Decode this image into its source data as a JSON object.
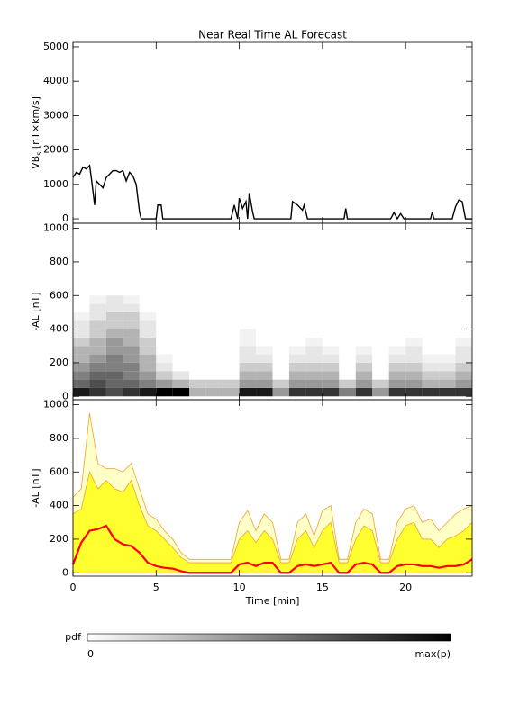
{
  "chart_data": [
    {
      "type": "line",
      "title": "Near Real Time AL Forecast",
      "ylabel": [
        "VB",
        "s",
        " [nT×km/s]"
      ],
      "x": [
        0,
        0.2,
        0.4,
        0.6,
        0.8,
        1.0,
        1.1,
        1.2,
        1.3,
        1.4,
        1.6,
        1.8,
        2.0,
        2.2,
        2.4,
        2.6,
        2.8,
        3.0,
        3.2,
        3.4,
        3.6,
        3.8,
        3.9,
        4.0,
        4.1,
        5.0,
        5.1,
        5.3,
        5.4,
        9.5,
        9.7,
        9.9,
        10.0,
        10.2,
        10.4,
        10.5,
        10.6,
        10.8,
        10.9,
        13.1,
        13.2,
        13.5,
        13.8,
        13.9,
        14.1,
        16.3,
        16.4,
        16.5,
        19.1,
        19.3,
        19.5,
        19.7,
        19.9,
        21.5,
        21.6,
        21.7,
        22.8,
        23.0,
        23.2,
        23.4,
        23.6,
        24
      ],
      "values": [
        1200,
        1350,
        1300,
        1500,
        1450,
        1550,
        1200,
        800,
        400,
        1100,
        1000,
        900,
        1200,
        1300,
        1400,
        1400,
        1350,
        1400,
        1100,
        1350,
        1250,
        1000,
        600,
        200,
        0,
        0,
        400,
        400,
        0,
        0,
        400,
        0,
        600,
        300,
        500,
        0,
        750,
        200,
        0,
        0,
        500,
        400,
        250,
        400,
        0,
        0,
        300,
        0,
        0,
        180,
        0,
        150,
        0,
        0,
        200,
        0,
        0,
        350,
        550,
        500,
        0,
        0
      ],
      "color": "#000000",
      "xlim": [
        0,
        24
      ],
      "xticks": [
        0,
        5,
        10,
        15,
        20
      ],
      "ylim": [
        -130,
        5130
      ],
      "yticks": [
        0,
        1000,
        2000,
        3000,
        4000,
        5000
      ]
    },
    {
      "type": "heatmap",
      "ylabel": [
        "-AL [nT]"
      ],
      "x_bins": [
        0,
        1,
        2,
        3,
        4,
        5,
        6,
        7,
        8,
        9,
        10,
        11,
        12,
        13,
        14,
        15,
        16,
        17,
        18,
        19,
        20,
        21,
        22,
        23,
        24
      ],
      "y_bins": [
        0,
        50,
        100,
        150,
        200,
        250,
        300,
        350,
        400,
        450,
        500,
        550,
        600
      ],
      "z": [
        [
          0.9,
          0.6,
          0.5,
          0.4,
          0.3,
          0.3,
          0.2,
          0.1,
          0.1,
          0.05,
          0,
          0
        ],
        [
          0.8,
          0.7,
          0.6,
          0.5,
          0.4,
          0.3,
          0.3,
          0.2,
          0.2,
          0.1,
          0.1,
          0.05
        ],
        [
          0.7,
          0.6,
          0.6,
          0.5,
          0.5,
          0.4,
          0.4,
          0.3,
          0.2,
          0.2,
          0.1,
          0.1
        ],
        [
          0.8,
          0.6,
          0.5,
          0.5,
          0.4,
          0.4,
          0.3,
          0.3,
          0.2,
          0.2,
          0.1,
          0.05
        ],
        [
          0.9,
          0.5,
          0.4,
          0.3,
          0.3,
          0.2,
          0.2,
          0.1,
          0.1,
          0.05,
          0,
          0
        ],
        [
          1,
          0.4,
          0.2,
          0.1,
          0.05,
          0,
          0,
          0,
          0,
          0,
          0,
          0
        ],
        [
          1,
          0.3,
          0.1,
          0,
          0,
          0,
          0,
          0,
          0,
          0,
          0,
          0
        ],
        [
          0.3,
          0.2,
          0,
          0,
          0,
          0,
          0,
          0,
          0,
          0,
          0,
          0
        ],
        [
          0.3,
          0.2,
          0,
          0,
          0,
          0,
          0,
          0,
          0,
          0,
          0,
          0
        ],
        [
          0.3,
          0.2,
          0,
          0,
          0,
          0,
          0,
          0,
          0,
          0,
          0,
          0
        ],
        [
          0.9,
          0.4,
          0.3,
          0.2,
          0.1,
          0.1,
          0.05,
          0.05,
          0,
          0,
          0,
          0
        ],
        [
          0.9,
          0.4,
          0.3,
          0.2,
          0.1,
          0.05,
          0,
          0,
          0,
          0,
          0,
          0
        ],
        [
          0.4,
          0.2,
          0,
          0,
          0,
          0,
          0,
          0,
          0,
          0,
          0,
          0
        ],
        [
          0.8,
          0.4,
          0.3,
          0.2,
          0.1,
          0.05,
          0,
          0,
          0,
          0,
          0,
          0
        ],
        [
          0.8,
          0.4,
          0.3,
          0.2,
          0.1,
          0.1,
          0.05,
          0,
          0,
          0,
          0,
          0
        ],
        [
          0.8,
          0.4,
          0.3,
          0.2,
          0.1,
          0.05,
          0,
          0,
          0,
          0,
          0,
          0
        ],
        [
          0.5,
          0.2,
          0,
          0,
          0,
          0,
          0,
          0,
          0,
          0,
          0,
          0
        ],
        [
          0.8,
          0.4,
          0.3,
          0.2,
          0.1,
          0.05,
          0,
          0,
          0,
          0,
          0,
          0
        ],
        [
          0.4,
          0.2,
          0,
          0,
          0,
          0,
          0,
          0,
          0,
          0,
          0,
          0
        ],
        [
          0.8,
          0.4,
          0.3,
          0.2,
          0.1,
          0.05,
          0,
          0,
          0,
          0,
          0,
          0
        ],
        [
          0.8,
          0.4,
          0.3,
          0.2,
          0.1,
          0.1,
          0.05,
          0,
          0,
          0,
          0,
          0
        ],
        [
          0.8,
          0.3,
          0.2,
          0.1,
          0.05,
          0,
          0,
          0,
          0,
          0,
          0,
          0
        ],
        [
          0.8,
          0.3,
          0.2,
          0.1,
          0.05,
          0,
          0,
          0,
          0,
          0,
          0,
          0
        ],
        [
          0.8,
          0.4,
          0.3,
          0.2,
          0.1,
          0.1,
          0.05,
          0,
          0,
          0,
          0,
          0
        ]
      ],
      "xlim": [
        0,
        24
      ],
      "xticks": [
        0,
        5,
        10,
        15,
        20
      ],
      "ylim": [
        -20,
        1030
      ],
      "yticks": [
        0,
        200,
        400,
        600,
        800,
        1000
      ]
    },
    {
      "type": "area",
      "ylabel": [
        "-AL [nT]"
      ],
      "xlabel": "Time [min]",
      "x": [
        0,
        0.5,
        1,
        1.5,
        2,
        2.5,
        3,
        3.5,
        4,
        4.5,
        5,
        5.5,
        6,
        6.5,
        7,
        7.5,
        8,
        8.5,
        9,
        9.5,
        10,
        10.5,
        11,
        11.5,
        12,
        12.5,
        13,
        13.5,
        14,
        14.5,
        15,
        15.5,
        16,
        16.5,
        17,
        17.5,
        18,
        18.5,
        19,
        19.5,
        20,
        20.5,
        21,
        21.5,
        22,
        22.5,
        23,
        23.5,
        24
      ],
      "series": [
        {
          "color": "#f0a030",
          "fill": "#ffffc8",
          "values": [
            450,
            500,
            950,
            650,
            620,
            620,
            600,
            650,
            500,
            350,
            320,
            250,
            200,
            120,
            80,
            80,
            80,
            80,
            80,
            80,
            300,
            370,
            250,
            350,
            300,
            80,
            80,
            300,
            350,
            220,
            370,
            400,
            80,
            80,
            300,
            380,
            350,
            80,
            80,
            300,
            380,
            400,
            300,
            320,
            250,
            300,
            350,
            380,
            400
          ]
        },
        {
          "color": "#f0a030",
          "fill": "#ffff30",
          "values": [
            350,
            380,
            600,
            500,
            550,
            500,
            480,
            550,
            400,
            280,
            250,
            200,
            150,
            90,
            60,
            60,
            60,
            60,
            60,
            60,
            200,
            250,
            180,
            250,
            200,
            60,
            60,
            200,
            250,
            150,
            250,
            300,
            60,
            60,
            200,
            280,
            250,
            60,
            60,
            200,
            280,
            300,
            200,
            200,
            150,
            200,
            220,
            250,
            300
          ]
        },
        {
          "color": "#ff0000",
          "values": [
            50,
            180,
            250,
            260,
            280,
            200,
            170,
            160,
            120,
            60,
            40,
            30,
            25,
            10,
            0,
            0,
            0,
            0,
            0,
            0,
            50,
            60,
            40,
            60,
            60,
            0,
            0,
            40,
            50,
            40,
            50,
            60,
            0,
            0,
            50,
            60,
            50,
            0,
            0,
            40,
            50,
            50,
            40,
            40,
            30,
            40,
            40,
            50,
            80
          ]
        }
      ],
      "xlim": [
        0,
        24
      ],
      "xticks": [
        0,
        5,
        10,
        15,
        20
      ],
      "ylim": [
        -20,
        1030
      ],
      "yticks": [
        0,
        200,
        400,
        600,
        800,
        1000
      ]
    }
  ],
  "colorbar": {
    "label": "pdf",
    "min_label": "0",
    "max_label": "max(p)"
  }
}
